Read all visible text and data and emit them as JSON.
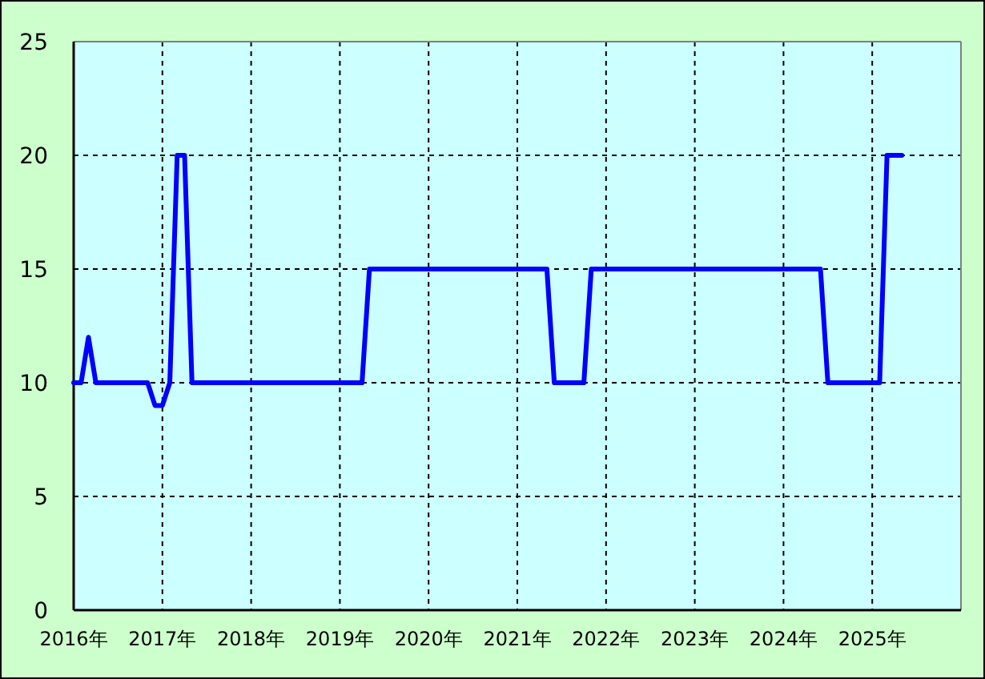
{
  "chart_data": {
    "type": "line",
    "x": [
      "2016-01",
      "2016-02",
      "2016-03",
      "2016-04",
      "2016-11",
      "2016-12",
      "2017-01",
      "2017-02",
      "2017-03",
      "2017-04",
      "2017-05",
      "2019-04",
      "2019-05",
      "2021-05",
      "2021-06",
      "2021-10",
      "2021-11",
      "2024-06",
      "2024-07",
      "2025-02",
      "2025-03",
      "2025-05"
    ],
    "series": [
      {
        "color": "#0000ff",
        "values": [
          10,
          10,
          12,
          10,
          10,
          9,
          9,
          10,
          20,
          20,
          10,
          10,
          15,
          15,
          10,
          10,
          15,
          15,
          10,
          10,
          20,
          20
        ]
      }
    ],
    "xlim": [
      "2016-01",
      "2026-01"
    ],
    "xticks": [
      {
        "value": "2016-01",
        "label": "2016年"
      },
      {
        "value": "2017-01",
        "label": "2017年"
      },
      {
        "value": "2018-01",
        "label": "2018年"
      },
      {
        "value": "2019-01",
        "label": "2019年"
      },
      {
        "value": "2020-01",
        "label": "2020年"
      },
      {
        "value": "2021-01",
        "label": "2021年"
      },
      {
        "value": "2022-01",
        "label": "2022年"
      },
      {
        "value": "2023-01",
        "label": "2023年"
      },
      {
        "value": "2024-01",
        "label": "2024年"
      },
      {
        "value": "2025-01",
        "label": "2025年"
      }
    ],
    "ylim": [
      0,
      25
    ],
    "yticks": [
      0,
      5,
      10,
      15,
      20,
      25
    ],
    "grid": true
  }
}
